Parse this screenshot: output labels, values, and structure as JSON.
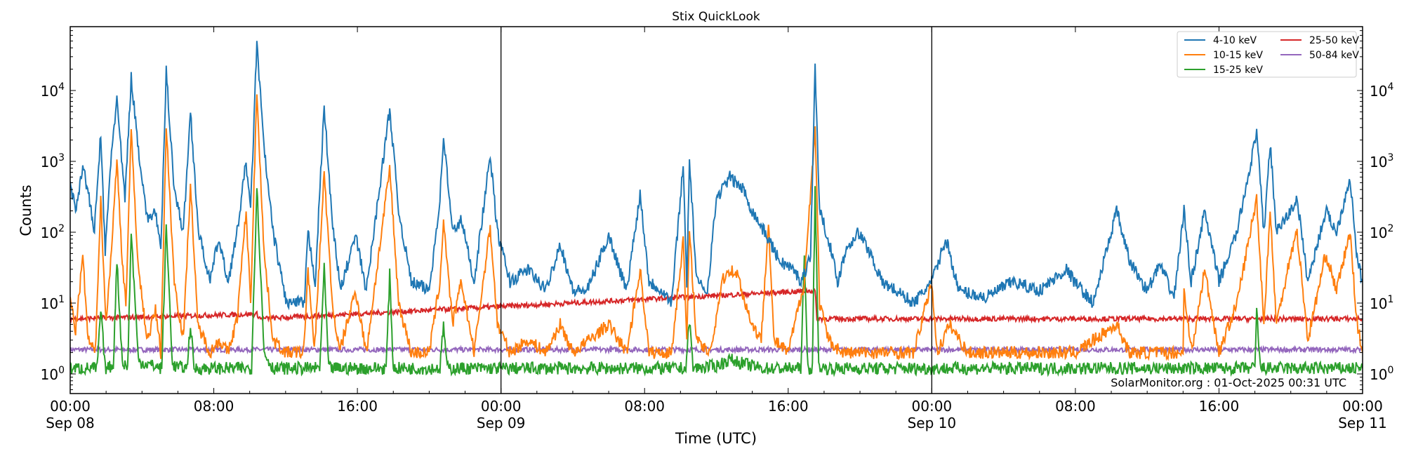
{
  "chart_data": {
    "type": "line",
    "title": "Stix QuickLook",
    "xlabel": "Time (UTC)",
    "ylabel": "Counts",
    "yscale": "log",
    "ylim": [
      0.52,
      80000
    ],
    "xlim_hours": [
      0,
      72
    ],
    "x_ticks": [
      {
        "h": 0,
        "label": "00:00",
        "sub": "Sep 08"
      },
      {
        "h": 8,
        "label": "08:00",
        "sub": ""
      },
      {
        "h": 16,
        "label": "16:00",
        "sub": ""
      },
      {
        "h": 24,
        "label": "00:00",
        "sub": "Sep 09"
      },
      {
        "h": 32,
        "label": "08:00",
        "sub": ""
      },
      {
        "h": 40,
        "label": "16:00",
        "sub": ""
      },
      {
        "h": 48,
        "label": "00:00",
        "sub": "Sep 10"
      },
      {
        "h": 56,
        "label": "08:00",
        "sub": ""
      },
      {
        "h": 64,
        "label": "16:00",
        "sub": ""
      },
      {
        "h": 72,
        "label": "00:00",
        "sub": "Sep 11"
      }
    ],
    "y_ticks": [
      {
        "v": 1,
        "base": "10",
        "exp": "0"
      },
      {
        "v": 10,
        "base": "10",
        "exp": "1"
      },
      {
        "v": 100,
        "base": "10",
        "exp": "2"
      },
      {
        "v": 1000,
        "base": "10",
        "exp": "3"
      },
      {
        "v": 10000,
        "base": "10",
        "exp": "4"
      }
    ],
    "day_lines_hours": [
      24,
      48
    ],
    "grid": false,
    "legend_position": "top-right",
    "annotation": "SolarMonitor.org : 01-Oct-2025 00:31 UTC",
    "series": [
      {
        "name": "4-10 keV",
        "color": "#1f77b4",
        "points": [
          [
            0,
            500
          ],
          [
            0.3,
            200
          ],
          [
            0.7,
            900
          ],
          [
            1.05,
            300
          ],
          [
            1.35,
            100
          ],
          [
            1.7,
            2500
          ],
          [
            1.95,
            50
          ],
          [
            2.3,
            1400
          ],
          [
            2.6,
            7500
          ],
          [
            2.9,
            800
          ],
          [
            3.05,
            300
          ],
          [
            3.4,
            15000
          ],
          [
            3.8,
            1500
          ],
          [
            4.3,
            150
          ],
          [
            4.75,
            200
          ],
          [
            5.05,
            50
          ],
          [
            5.35,
            19000
          ],
          [
            5.8,
            400
          ],
          [
            6.3,
            100
          ],
          [
            6.7,
            5000
          ],
          [
            7.15,
            100
          ],
          [
            7.8,
            20
          ],
          [
            8.25,
            80
          ],
          [
            8.8,
            20
          ],
          [
            9.3,
            100
          ],
          [
            9.8,
            1000
          ],
          [
            10.05,
            200
          ],
          [
            10.4,
            47000
          ],
          [
            10.8,
            1500
          ],
          [
            11.3,
            100
          ],
          [
            12.05,
            10
          ],
          [
            13.05,
            10
          ],
          [
            13.25,
            100
          ],
          [
            13.65,
            20
          ],
          [
            14.15,
            6000
          ],
          [
            14.55,
            200
          ],
          [
            15.05,
            15
          ],
          [
            15.9,
            90
          ],
          [
            16.5,
            15
          ],
          [
            17.8,
            5500
          ],
          [
            18.3,
            200
          ],
          [
            19.0,
            20
          ],
          [
            20.0,
            15
          ],
          [
            20.6,
            300
          ],
          [
            20.8,
            2300
          ],
          [
            21.3,
            100
          ],
          [
            21.8,
            150
          ],
          [
            22.5,
            20
          ],
          [
            23.4,
            1200
          ],
          [
            23.8,
            100
          ],
          [
            24.5,
            20
          ],
          [
            25.5,
            30
          ],
          [
            26.5,
            15
          ],
          [
            27.3,
            70
          ],
          [
            28.0,
            15
          ],
          [
            28.8,
            15
          ],
          [
            30.0,
            90
          ],
          [
            31.0,
            15
          ],
          [
            31.75,
            350
          ],
          [
            32.25,
            20
          ],
          [
            33.0,
            15
          ],
          [
            33.5,
            10
          ],
          [
            34.15,
            900
          ],
          [
            34.35,
            20
          ],
          [
            34.5,
            1000
          ],
          [
            34.9,
            20
          ],
          [
            35.5,
            15
          ],
          [
            36.0,
            300
          ],
          [
            36.75,
            600
          ],
          [
            37.5,
            400
          ],
          [
            38.0,
            200
          ],
          [
            38.9,
            80
          ],
          [
            39.5,
            40
          ],
          [
            40.25,
            30
          ],
          [
            40.75,
            20
          ],
          [
            41.25,
            50
          ],
          [
            41.5,
            22000
          ],
          [
            41.75,
            200
          ],
          [
            42.25,
            80
          ],
          [
            42.75,
            20
          ],
          [
            43.25,
            60
          ],
          [
            43.9,
            100
          ],
          [
            44.6,
            50
          ],
          [
            45.2,
            20
          ],
          [
            46.0,
            15
          ],
          [
            47.0,
            10
          ],
          [
            48.0,
            20
          ],
          [
            48.8,
            80
          ],
          [
            49.5,
            15
          ],
          [
            51.0,
            12
          ],
          [
            52.5,
            20
          ],
          [
            54.0,
            15
          ],
          [
            55.5,
            30
          ],
          [
            55.95,
            20
          ],
          [
            57.0,
            10
          ],
          [
            58.3,
            200
          ],
          [
            59.0,
            40
          ],
          [
            60.0,
            15
          ],
          [
            60.7,
            35
          ],
          [
            61.5,
            12
          ],
          [
            62.05,
            200
          ],
          [
            62.45,
            20
          ],
          [
            63.2,
            200
          ],
          [
            64.0,
            20
          ],
          [
            65.0,
            100
          ],
          [
            66.1,
            2500
          ],
          [
            66.5,
            100
          ],
          [
            66.85,
            1800
          ],
          [
            67.2,
            100
          ],
          [
            68.0,
            200
          ],
          [
            68.35,
            300
          ],
          [
            68.95,
            20
          ],
          [
            69.95,
            200
          ],
          [
            70.55,
            100
          ],
          [
            71.3,
            600
          ],
          [
            71.7,
            40
          ],
          [
            72,
            20
          ]
        ]
      },
      {
        "name": "10-15 keV",
        "color": "#ff7f0e",
        "points": [
          [
            0,
            12
          ],
          [
            0.3,
            4
          ],
          [
            0.7,
            45
          ],
          [
            1.0,
            3
          ],
          [
            1.4,
            2
          ],
          [
            1.7,
            300
          ],
          [
            2.0,
            5
          ],
          [
            2.3,
            60
          ],
          [
            2.6,
            1000
          ],
          [
            2.9,
            40
          ],
          [
            3.1,
            10
          ],
          [
            3.4,
            2500
          ],
          [
            3.8,
            30
          ],
          [
            4.3,
            3
          ],
          [
            4.75,
            8
          ],
          [
            5.05,
            2
          ],
          [
            5.35,
            3000
          ],
          [
            5.8,
            20
          ],
          [
            6.3,
            3
          ],
          [
            6.7,
            500
          ],
          [
            7.1,
            5
          ],
          [
            7.8,
            2
          ],
          [
            8.3,
            3
          ],
          [
            8.8,
            2
          ],
          [
            9.3,
            6
          ],
          [
            9.8,
            200
          ],
          [
            10.05,
            10
          ],
          [
            10.4,
            10000
          ],
          [
            10.8,
            50
          ],
          [
            11.3,
            3
          ],
          [
            12.0,
            2
          ],
          [
            13.0,
            2
          ],
          [
            13.25,
            30
          ],
          [
            13.6,
            2
          ],
          [
            14.15,
            700
          ],
          [
            14.6,
            10
          ],
          [
            15.0,
            2
          ],
          [
            15.9,
            15
          ],
          [
            16.5,
            2
          ],
          [
            17.8,
            800
          ],
          [
            18.3,
            10
          ],
          [
            19.0,
            2
          ],
          [
            20.0,
            2
          ],
          [
            20.6,
            20
          ],
          [
            20.8,
            150
          ],
          [
            21.3,
            5
          ],
          [
            21.8,
            20
          ],
          [
            22.5,
            2
          ],
          [
            23.4,
            120
          ],
          [
            23.8,
            5
          ],
          [
            24.5,
            2
          ],
          [
            25.5,
            3
          ],
          [
            26.5,
            2
          ],
          [
            27.3,
            5
          ],
          [
            28.0,
            2
          ],
          [
            30.0,
            5
          ],
          [
            31.0,
            2
          ],
          [
            31.75,
            30
          ],
          [
            32.25,
            2
          ],
          [
            33.5,
            2
          ],
          [
            34.15,
            80
          ],
          [
            34.35,
            3
          ],
          [
            34.5,
            100
          ],
          [
            34.9,
            3
          ],
          [
            35.5,
            2
          ],
          [
            35.8,
            3
          ],
          [
            36.3,
            20
          ],
          [
            36.75,
            30
          ],
          [
            37.2,
            25
          ],
          [
            37.6,
            10
          ],
          [
            38.0,
            5
          ],
          [
            38.5,
            3
          ],
          [
            38.9,
            150
          ],
          [
            39.2,
            3
          ],
          [
            40.0,
            2
          ],
          [
            40.9,
            20
          ],
          [
            41.5,
            3000
          ],
          [
            41.75,
            10
          ],
          [
            42.25,
            3
          ],
          [
            43.0,
            2
          ],
          [
            44.0,
            2
          ],
          [
            46.0,
            2
          ],
          [
            47.0,
            2
          ],
          [
            48.0,
            20
          ],
          [
            48.3,
            2
          ],
          [
            49.0,
            5
          ],
          [
            50.0,
            2
          ],
          [
            52.0,
            2
          ],
          [
            54.0,
            2
          ],
          [
            56.0,
            2
          ],
          [
            58.3,
            5
          ],
          [
            59.0,
            2
          ],
          [
            62.0,
            2
          ],
          [
            62.05,
            15
          ],
          [
            62.5,
            2
          ],
          [
            63.2,
            30
          ],
          [
            64.0,
            2
          ],
          [
            65.0,
            10
          ],
          [
            66.1,
            300
          ],
          [
            66.5,
            5
          ],
          [
            66.85,
            200
          ],
          [
            67.2,
            5
          ],
          [
            68.0,
            50
          ],
          [
            68.35,
            100
          ],
          [
            68.95,
            3
          ],
          [
            69.95,
            50
          ],
          [
            70.55,
            15
          ],
          [
            71.3,
            100
          ],
          [
            71.7,
            5
          ],
          [
            72,
            2
          ]
        ]
      },
      {
        "name": "15-25 keV",
        "color": "#2ca02c",
        "points": [
          [
            0,
            1.2
          ],
          [
            1.5,
            1.2
          ],
          [
            1.7,
            8
          ],
          [
            1.95,
            1.2
          ],
          [
            2.4,
            1.3
          ],
          [
            2.6,
            40
          ],
          [
            2.9,
            1.5
          ],
          [
            3.2,
            1.2
          ],
          [
            3.4,
            100
          ],
          [
            3.8,
            1.5
          ],
          [
            5.1,
            1.2
          ],
          [
            5.35,
            120
          ],
          [
            5.7,
            1.3
          ],
          [
            6.5,
            1.2
          ],
          [
            6.7,
            5
          ],
          [
            6.9,
            1.2
          ],
          [
            10.1,
            1.2
          ],
          [
            10.4,
            450
          ],
          [
            10.8,
            2
          ],
          [
            11.3,
            1.2
          ],
          [
            13.9,
            1.2
          ],
          [
            14.15,
            30
          ],
          [
            14.4,
            1.2
          ],
          [
            17.6,
            1.2
          ],
          [
            17.8,
            25
          ],
          [
            18.0,
            1.2
          ],
          [
            20.6,
            1.2
          ],
          [
            20.8,
            5
          ],
          [
            21.0,
            1.2
          ],
          [
            24,
            1.2
          ],
          [
            34.3,
            1.2
          ],
          [
            34.5,
            6
          ],
          [
            34.7,
            1.2
          ],
          [
            36.0,
            1.3
          ],
          [
            36.75,
            1.6
          ],
          [
            37.5,
            1.4
          ],
          [
            38.5,
            1.2
          ],
          [
            40.7,
            1.2
          ],
          [
            40.9,
            40
          ],
          [
            41.1,
            1.2
          ],
          [
            41.35,
            1.2
          ],
          [
            41.5,
            400
          ],
          [
            41.7,
            1.3
          ],
          [
            42,
            1.2
          ],
          [
            48,
            1.2
          ],
          [
            66.0,
            1.2
          ],
          [
            66.1,
            8
          ],
          [
            66.3,
            1.2
          ],
          [
            72,
            1.2
          ]
        ]
      },
      {
        "name": "25-50 keV",
        "color": "#d62728",
        "points": [
          [
            0,
            6
          ],
          [
            10.4,
            7
          ],
          [
            10.6,
            6
          ],
          [
            41.5,
            15
          ],
          [
            41.6,
            6
          ],
          [
            72,
            6
          ]
        ]
      },
      {
        "name": "50-84 keV",
        "color": "#9467bd",
        "points": [
          [
            0,
            2.2
          ],
          [
            72,
            2.2
          ]
        ]
      }
    ]
  }
}
